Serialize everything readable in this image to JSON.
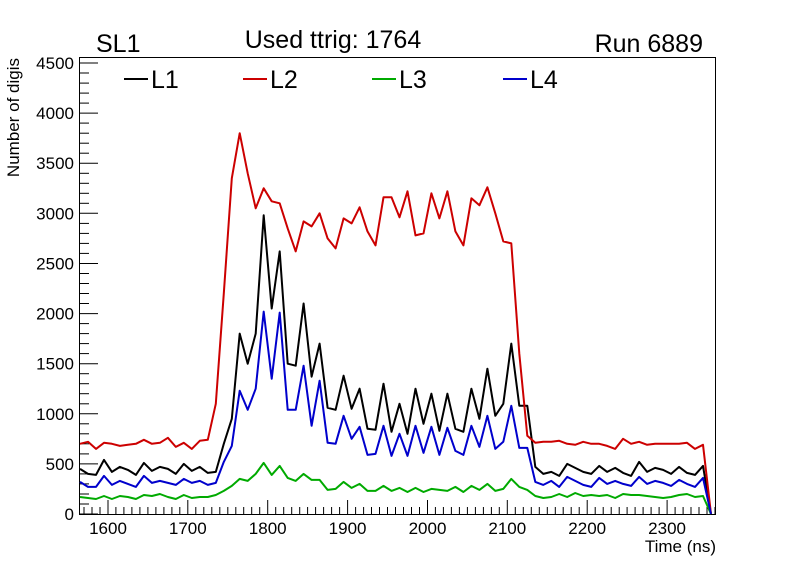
{
  "header": {
    "left_label": "SL1",
    "title": "Used ttrig: 1764",
    "right_label": "Run 6889"
  },
  "chart_data": {
    "type": "line",
    "xlabel": "Time (ns)",
    "ylabel": "Number of digis",
    "xlim": [
      1565,
      2360
    ],
    "ylim": [
      0,
      4550
    ],
    "x_ticks": [
      1600,
      1700,
      1800,
      1900,
      2000,
      2100,
      2200,
      2300
    ],
    "y_ticks": [
      0,
      500,
      1000,
      1500,
      2000,
      2500,
      3000,
      3500,
      4000,
      4500
    ],
    "grid": false,
    "legend_position": "top-left inside plot",
    "x": [
      1565,
      1575,
      1585,
      1595,
      1605,
      1615,
      1625,
      1635,
      1645,
      1655,
      1665,
      1675,
      1685,
      1695,
      1705,
      1715,
      1725,
      1735,
      1745,
      1755,
      1765,
      1775,
      1785,
      1795,
      1805,
      1815,
      1825,
      1835,
      1845,
      1855,
      1865,
      1875,
      1885,
      1895,
      1905,
      1915,
      1925,
      1935,
      1945,
      1955,
      1965,
      1975,
      1985,
      1995,
      2005,
      2015,
      2025,
      2035,
      2045,
      2055,
      2065,
      2075,
      2085,
      2095,
      2105,
      2115,
      2125,
      2135,
      2145,
      2155,
      2165,
      2175,
      2185,
      2195,
      2205,
      2215,
      2225,
      2235,
      2245,
      2255,
      2265,
      2275,
      2285,
      2295,
      2305,
      2315,
      2325,
      2335,
      2345,
      2355
    ],
    "series": [
      {
        "name": "L1",
        "color": "#000000",
        "values": [
          450,
          400,
          390,
          540,
          420,
          470,
          440,
          390,
          510,
          430,
          470,
          450,
          400,
          500,
          430,
          470,
          410,
          420,
          700,
          950,
          1800,
          1500,
          1800,
          2980,
          2050,
          2620,
          1500,
          1480,
          2100,
          1370,
          1700,
          1060,
          1040,
          1380,
          1050,
          1250,
          850,
          840,
          1300,
          820,
          1100,
          800,
          1250,
          900,
          1200,
          830,
          1200,
          850,
          820,
          1250,
          950,
          1450,
          980,
          1100,
          1700,
          1080,
          1080,
          470,
          400,
          420,
          380,
          500,
          460,
          420,
          400,
          480,
          420,
          460,
          410,
          380,
          520,
          420,
          460,
          440,
          400,
          470,
          410,
          390,
          480,
          0
        ]
      },
      {
        "name": "L2",
        "color": "#cc0000",
        "values": [
          700,
          720,
          650,
          710,
          700,
          680,
          690,
          700,
          740,
          700,
          710,
          760,
          670,
          710,
          650,
          730,
          740,
          1100,
          2200,
          3350,
          3800,
          3400,
          3050,
          3250,
          3120,
          3100,
          2850,
          2620,
          2920,
          2870,
          3000,
          2750,
          2650,
          2950,
          2900,
          3060,
          2820,
          2680,
          3160,
          3160,
          2960,
          3220,
          2780,
          2800,
          3200,
          2950,
          3220,
          2820,
          2680,
          3150,
          3080,
          3260,
          3000,
          2720,
          2700,
          1600,
          780,
          710,
          720,
          720,
          730,
          700,
          690,
          720,
          700,
          700,
          680,
          650,
          750,
          700,
          720,
          690,
          700,
          700,
          700,
          700,
          710,
          650,
          690,
          0
        ]
      },
      {
        "name": "L3",
        "color": "#00aa00",
        "values": [
          170,
          160,
          150,
          180,
          150,
          180,
          170,
          150,
          190,
          180,
          200,
          170,
          150,
          190,
          160,
          170,
          170,
          190,
          230,
          280,
          350,
          330,
          400,
          510,
          390,
          480,
          360,
          330,
          400,
          340,
          340,
          240,
          250,
          320,
          260,
          300,
          230,
          230,
          280,
          230,
          260,
          220,
          260,
          220,
          250,
          240,
          230,
          270,
          220,
          280,
          240,
          300,
          230,
          250,
          350,
          270,
          240,
          180,
          160,
          170,
          200,
          170,
          210,
          180,
          190,
          180,
          190,
          160,
          200,
          190,
          190,
          180,
          170,
          160,
          170,
          190,
          200,
          170,
          180,
          0
        ]
      },
      {
        "name": "L4",
        "color": "#0000cc",
        "values": [
          320,
          270,
          270,
          380,
          290,
          330,
          300,
          270,
          380,
          310,
          330,
          310,
          290,
          350,
          310,
          330,
          290,
          310,
          520,
          680,
          1230,
          1040,
          1250,
          2020,
          1350,
          2010,
          1040,
          1040,
          1480,
          880,
          1330,
          710,
          700,
          980,
          750,
          870,
          590,
          600,
          880,
          580,
          800,
          580,
          880,
          610,
          870,
          590,
          860,
          630,
          590,
          880,
          670,
          980,
          650,
          720,
          1080,
          660,
          660,
          320,
          290,
          330,
          270,
          370,
          330,
          290,
          270,
          360,
          300,
          330,
          300,
          280,
          370,
          300,
          330,
          310,
          280,
          340,
          300,
          270,
          360,
          0
        ]
      }
    ]
  }
}
